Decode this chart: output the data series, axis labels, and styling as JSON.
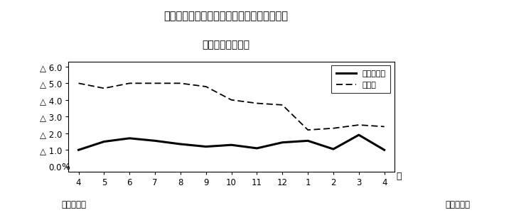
{
  "title_line1": "第３図　常用雇用指数　対前年同月比の推移",
  "title_line2": "（規模５人以上）",
  "xlabel_months": [
    "4",
    "5",
    "6",
    "7",
    "8",
    "9",
    "10",
    "11",
    "12",
    "1",
    "2",
    "3",
    "4"
  ],
  "xlabel_suffix": "月",
  "label_left_bottom": "平成２１年",
  "label_right_bottom": "平成２２年",
  "ylabel_label": "%",
  "yticks_labels": [
    "0.0",
    "△ 1.0",
    "△ 2.0",
    "△ 3.0",
    "△ 4.0",
    "△ 5.0",
    "△ 6.0"
  ],
  "yticks_values": [
    0.0,
    -1.0,
    -2.0,
    -3.0,
    -4.0,
    -5.0,
    -6.0
  ],
  "ylim_top": 0.3,
  "ylim_bottom": -6.3,
  "xlim_left": -0.4,
  "xlim_right": 12.4,
  "series1_label": "調査産業計",
  "series1_values": [
    -1.0,
    -1.5,
    -1.7,
    -1.55,
    -1.35,
    -1.2,
    -1.3,
    -1.1,
    -1.45,
    -1.55,
    -1.05,
    -1.9,
    -1.0
  ],
  "series2_label": "製造業",
  "series2_values": [
    -5.0,
    -4.7,
    -5.0,
    -5.0,
    -5.0,
    -4.8,
    -4.0,
    -3.8,
    -3.7,
    -2.2,
    -2.3,
    -2.5,
    -2.4
  ],
  "series1_color": "#000000",
  "series2_color": "#000000",
  "background_color": "#ffffff",
  "plot_bg_color": "#ffffff"
}
